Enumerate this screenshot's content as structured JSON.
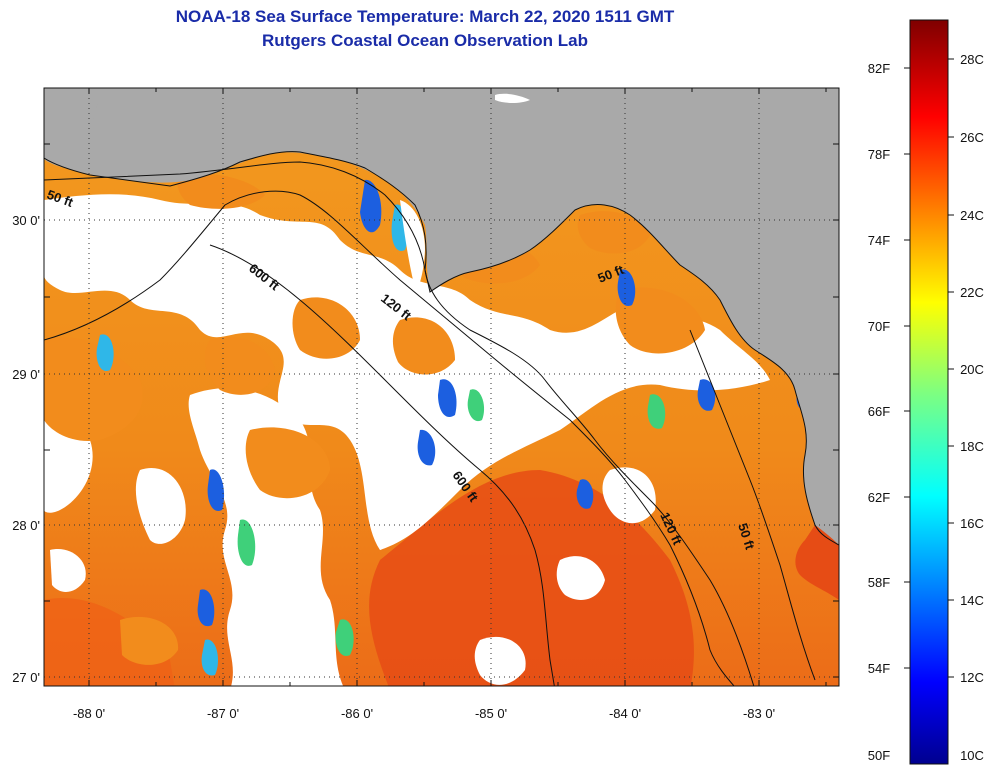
{
  "header": {
    "title": "NOAA-18 Sea Surface Temperature:  March 22, 2020 1511 GMT",
    "subtitle": "Rutgers Coastal Ocean Observation Lab"
  },
  "map": {
    "lat_ticks": [
      "30 0'",
      "29 0'",
      "28 0'",
      "27 0'"
    ],
    "lon_ticks": [
      "-88 0'",
      "-87 0'",
      "-86 0'",
      "-85 0'",
      "-84 0'",
      "-83 0'"
    ],
    "lat_range": [
      26.97,
      30.87
    ],
    "lon_range": [
      -88.33,
      -82.55
    ],
    "colors": {
      "land": "#a9a9a9",
      "cloud": "#ffffff",
      "warm_water": "#f08a1a",
      "hot_water": "#e44a14",
      "cool_water": "#1c5fe0",
      "contour": "#111111"
    },
    "contours": [
      {
        "label": "50 ft"
      },
      {
        "label": "600 ft"
      },
      {
        "label": "120 ft"
      },
      {
        "label": "50 ft"
      },
      {
        "label": "600 ft"
      },
      {
        "label": "120 ft"
      },
      {
        "label": "50 ft"
      }
    ]
  },
  "colorbar": {
    "f_labels": [
      "82F",
      "78F",
      "74F",
      "70F",
      "66F",
      "62F",
      "58F",
      "54F",
      "50F"
    ],
    "c_labels": [
      "28C",
      "26C",
      "24C",
      "22C",
      "20C",
      "18C",
      "16C",
      "14C",
      "12C",
      "10C"
    ],
    "range_c": [
      10,
      29
    ]
  }
}
